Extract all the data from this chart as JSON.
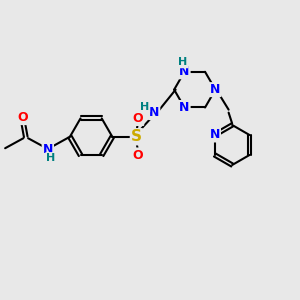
{
  "background_color": "#e8e8e8",
  "bond_color": "#000000",
  "atom_colors": {
    "N": "#0000ff",
    "O": "#ff0000",
    "S": "#ccaa00",
    "H": "#008080",
    "C": "#000000"
  },
  "figsize": [
    3.0,
    3.0
  ],
  "dpi": 100,
  "lw": 1.5,
  "xlim": [
    0,
    10
  ],
  "ylim": [
    0,
    10
  ]
}
